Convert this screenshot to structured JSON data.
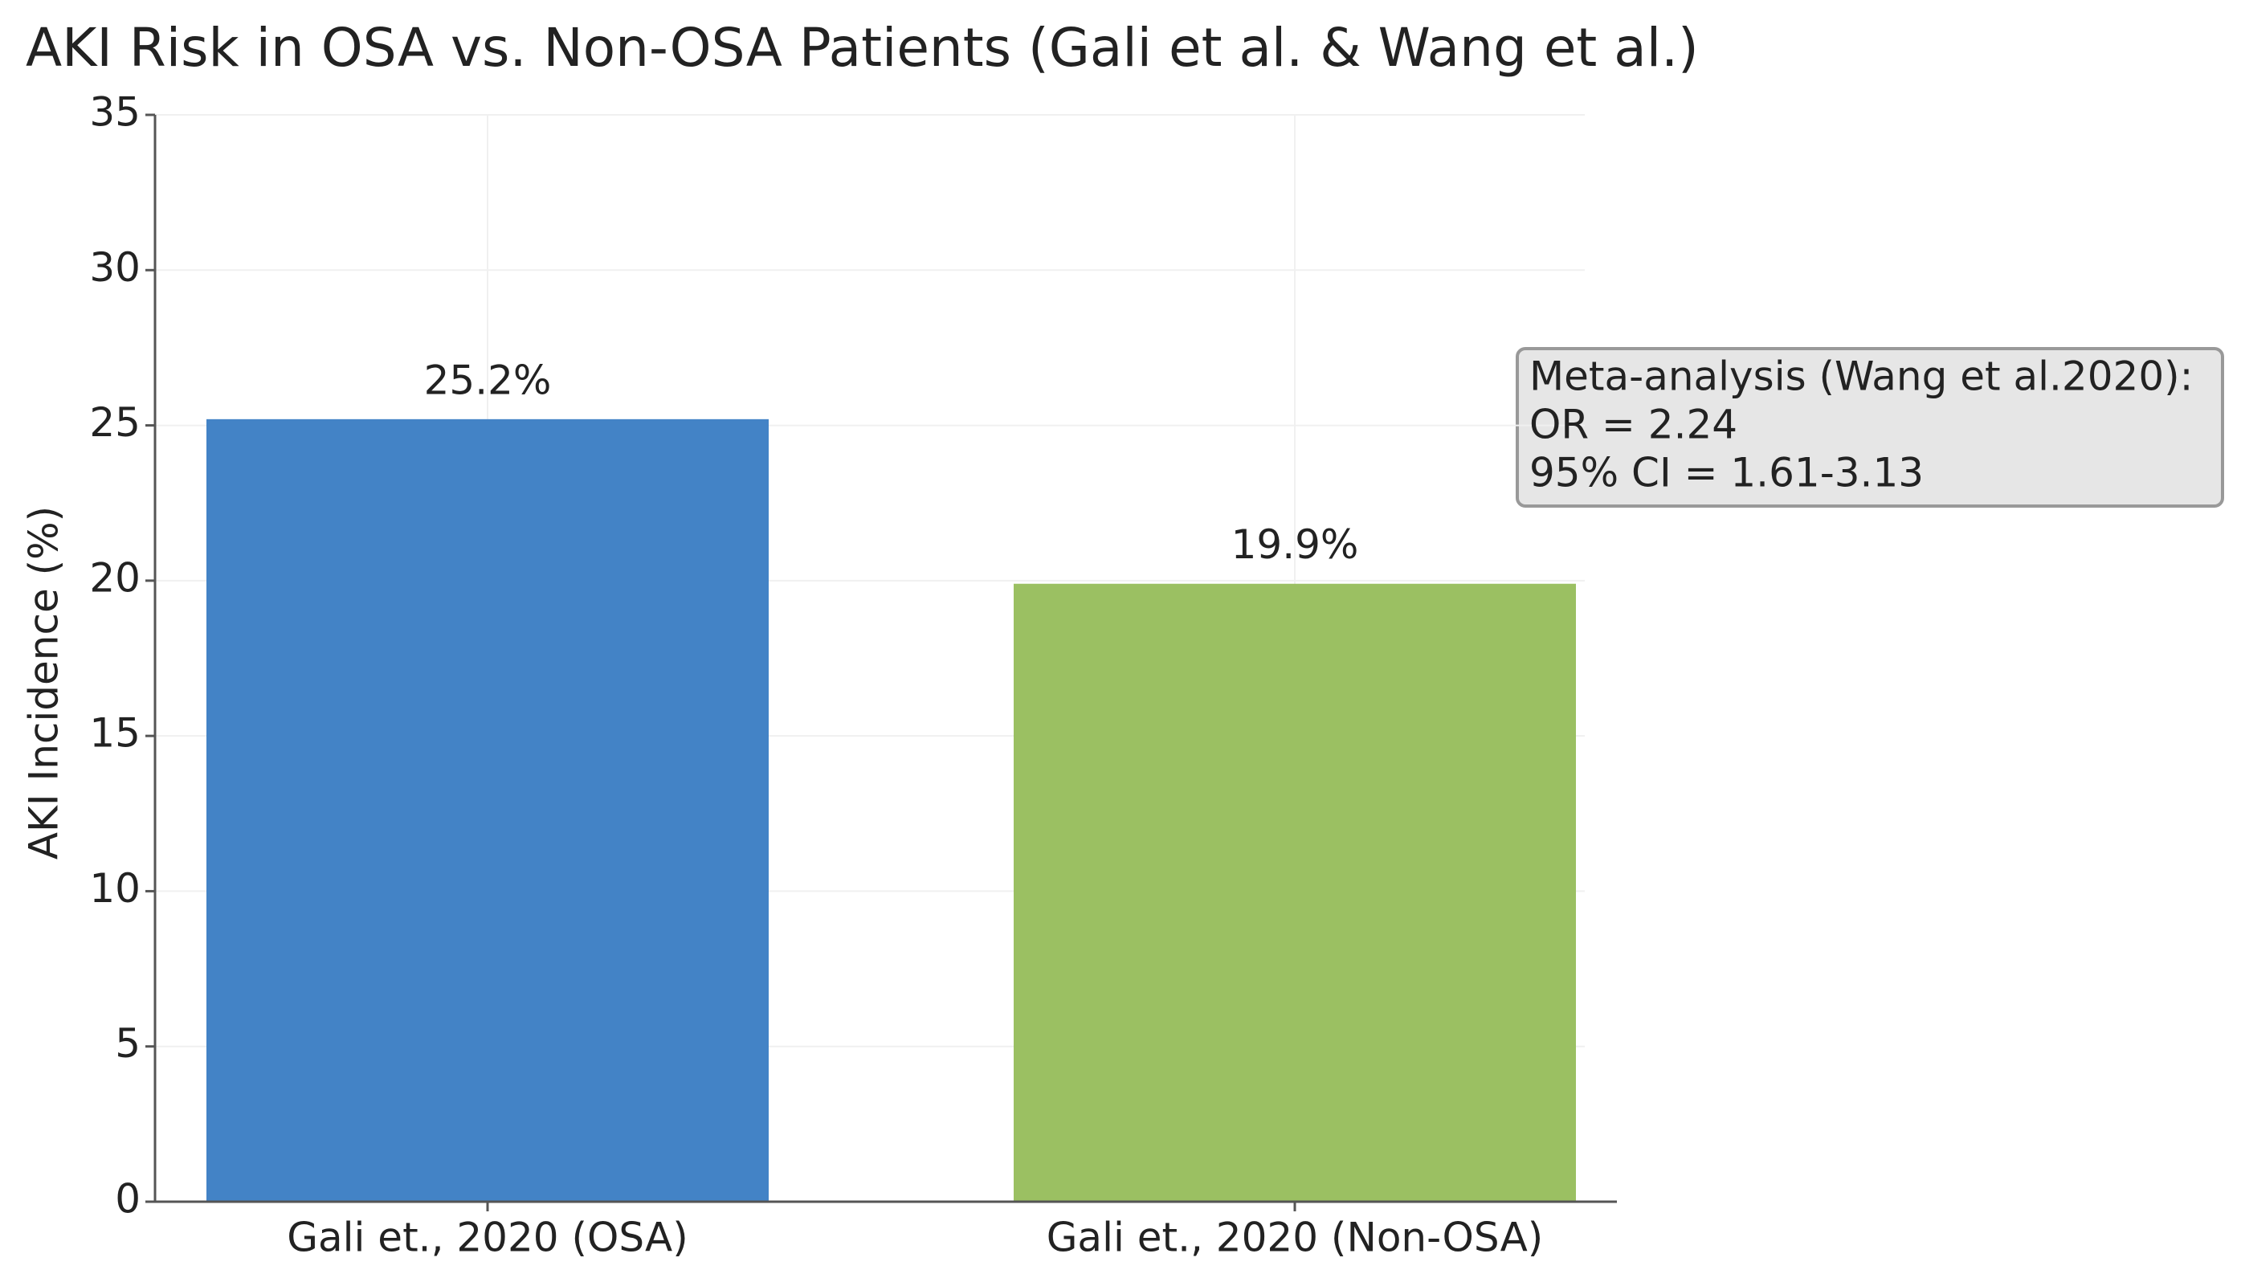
{
  "chart_data": {
    "type": "bar",
    "title": "AKI Risk in OSA vs. Non-OSA Patients (Gali et al. & Wang et al.)",
    "y_label": "AKI Incidence (%)",
    "categories": [
      "Gali et., 2020 (OSA)",
      "Gali et., 2020 (Non-OSA)"
    ],
    "values": [
      25.2,
      19.9
    ],
    "value_labels": [
      "25.2%",
      "19.9%"
    ],
    "colors": [
      "#4383c6",
      "#9bc062"
    ],
    "ylim": [
      0,
      35
    ],
    "yticks": [
      0,
      5,
      10,
      15,
      20,
      25,
      30,
      35
    ],
    "grid": true,
    "annotation": [
      "Meta-analysis (Wang et al.2020):",
      "OR = 2.24",
      "95% CI = 1.61-3.13"
    ]
  }
}
